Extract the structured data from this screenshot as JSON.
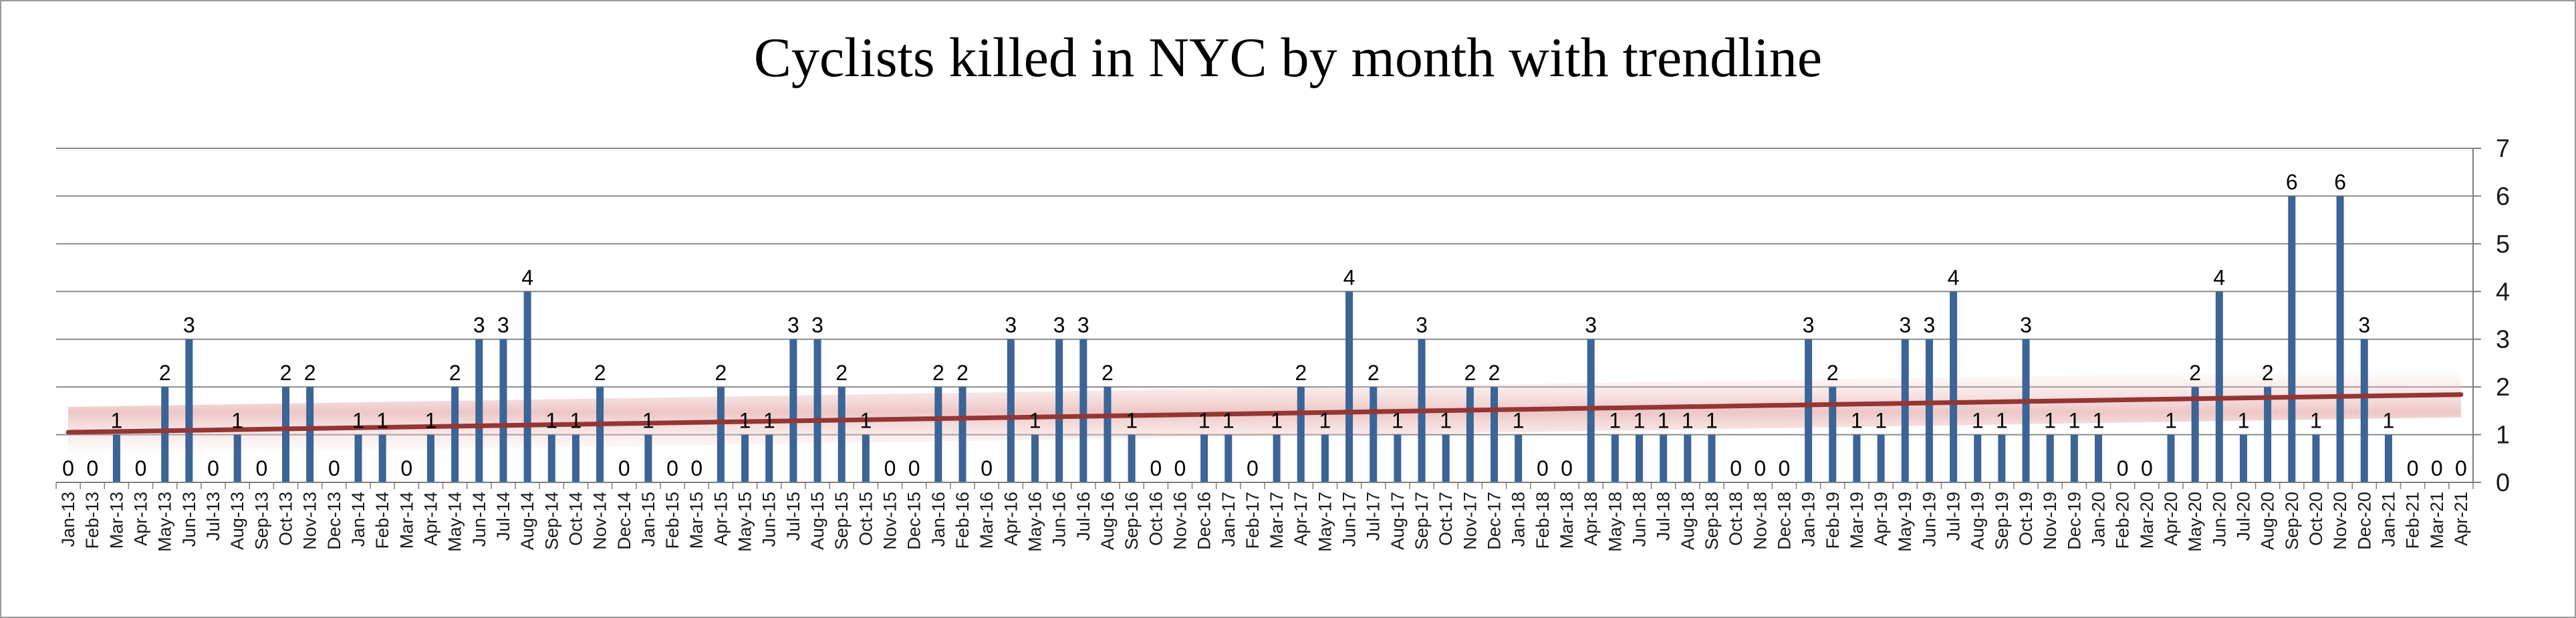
{
  "chart_data": {
    "type": "bar",
    "title": "Cyclists killed in NYC  by month with trendline",
    "xlabel": "",
    "ylabel": "",
    "ylim": [
      0,
      7
    ],
    "yticks": [
      0,
      1,
      2,
      3,
      4,
      5,
      6,
      7
    ],
    "y_axis_side": "right",
    "grid": true,
    "legend": "none",
    "categories": [
      "Jan-13",
      "Feb-13",
      "Mar-13",
      "Apr-13",
      "May-13",
      "Jun-13",
      "Jul-13",
      "Aug-13",
      "Sep-13",
      "Oct-13",
      "Nov-13",
      "Dec-13",
      "Jan-14",
      "Feb-14",
      "Mar-14",
      "Apr-14",
      "May-14",
      "Jun-14",
      "Jul-14",
      "Aug-14",
      "Sep-14",
      "Oct-14",
      "Nov-14",
      "Dec-14",
      "Jan-15",
      "Feb-15",
      "Mar-15",
      "Apr-15",
      "May-15",
      "Jun-15",
      "Jul-15",
      "Aug-15",
      "Sep-15",
      "Oct-15",
      "Nov-15",
      "Dec-15",
      "Jan-16",
      "Feb-16",
      "Mar-16",
      "Apr-16",
      "May-16",
      "Jun-16",
      "Jul-16",
      "Aug-16",
      "Sep-16",
      "Oct-16",
      "Nov-16",
      "Dec-16",
      "Jan-17",
      "Feb-17",
      "Mar-17",
      "Apr-17",
      "May-17",
      "Jun-17",
      "Jul-17",
      "Aug-17",
      "Sep-17",
      "Oct-17",
      "Nov-17",
      "Dec-17",
      "Jan-18",
      "Feb-18",
      "Mar-18",
      "Apr-18",
      "May-18",
      "Jun-18",
      "Jul-18",
      "Aug-18",
      "Sep-18",
      "Oct-18",
      "Nov-18",
      "Dec-18",
      "Jan-19",
      "Feb-19",
      "Mar-19",
      "Apr-19",
      "May-19",
      "Jun-19",
      "Jul-19",
      "Aug-19",
      "Sep-19",
      "Oct-19",
      "Nov-19",
      "Dec-19",
      "Jan-20",
      "Feb-20",
      "Mar-20",
      "Apr-20",
      "May-20",
      "Jun-20",
      "Jul-20",
      "Aug-20",
      "Sep-20",
      "Oct-20",
      "Nov-20",
      "Dec-20",
      "Jan-21",
      "Feb-21",
      "Mar-21",
      "Apr-21"
    ],
    "x_tick_labels": [
      "Jan-13",
      "Mar-13",
      "May-13",
      "Jul-13",
      "Sep-13",
      "Nov-13",
      "Jan-14",
      "Mar-14",
      "May-14",
      "Jul-14",
      "Sep-14",
      "Nov-14",
      "Jan-15",
      "Mar-15",
      "May-15",
      "Jul-15",
      "Sep-15",
      "Nov-15",
      "Jan-16",
      "Mar-16",
      "May-16",
      "Jul-16",
      "Sep-16",
      "Nov-16",
      "Jan-17",
      "Mar-17",
      "May-17",
      "Jul-17",
      "Sep-17",
      "Nov-17",
      "Jan-18",
      "Mar-18",
      "May-18",
      "Jul-18",
      "Sep-18",
      "Nov-18",
      "Jan-19",
      "Mar-19",
      "May-19",
      "Jul-19",
      "Sep-19",
      "Nov-19",
      "Jan-20",
      "Mar-20",
      "May-20",
      "Jul-20",
      "Sep-20",
      "Nov-20",
      "Jan-21",
      "Mar-21",
      "Feb-13",
      "Apr-13",
      "Jun-13",
      "Aug-13",
      "Oct-13",
      "Dec-13",
      "Feb-14",
      "Apr-14",
      "Jun-14",
      "Aug-14",
      "Oct-14",
      "Dec-14",
      "Feb-15",
      "Apr-15",
      "Jun-15",
      "Aug-15",
      "Oct-15",
      "Dec-15",
      "Feb-16",
      "Apr-16",
      "Jun-16",
      "Aug-16",
      "Oct-16",
      "Dec-16",
      "Feb-17",
      "Apr-17",
      "Jun-17",
      "Aug-17",
      "Oct-17",
      "Dec-17",
      "Feb-18",
      "Apr-18",
      "Jun-18",
      "Aug-18",
      "Oct-18",
      "Dec-18",
      "Feb-19",
      "Apr-19",
      "Jun-19",
      "Aug-19",
      "Oct-19",
      "Dec-19",
      "Feb-20",
      "Apr-20",
      "Jun-20",
      "Aug-20",
      "Oct-20",
      "Dec-20",
      "Feb-21",
      "Apr-21"
    ],
    "series": [
      {
        "values": [
          0,
          0,
          1,
          0,
          2,
          3,
          0,
          1,
          0,
          2,
          2,
          0,
          1,
          1,
          0,
          1,
          2,
          3,
          3,
          4,
          1,
          1,
          2,
          0,
          1,
          0,
          0,
          2,
          1,
          1,
          3,
          3,
          2,
          1,
          0,
          0,
          2,
          2,
          0,
          3,
          1,
          3,
          3,
          2,
          1,
          0,
          0,
          1,
          1,
          0,
          1,
          2,
          1,
          4,
          2,
          1,
          3,
          1,
          2,
          2,
          1,
          0,
          0,
          3,
          1,
          1,
          1,
          1,
          1,
          0,
          0,
          0,
          3,
          2,
          1,
          1,
          3,
          3,
          4,
          1,
          1,
          3,
          1,
          1,
          1,
          0,
          0,
          1,
          2,
          4,
          1,
          2,
          6,
          1,
          6,
          3,
          1,
          0,
          0,
          0
        ],
        "color": "#3b6497"
      }
    ],
    "trendline": {
      "type": "linear",
      "start": 1.05,
      "end": 1.84,
      "color": "#943634"
    },
    "colors": {
      "bar": "#3b6497",
      "trendline": "#943634",
      "grid": "#8c8c8c",
      "axis": "#7f7f7f"
    }
  }
}
